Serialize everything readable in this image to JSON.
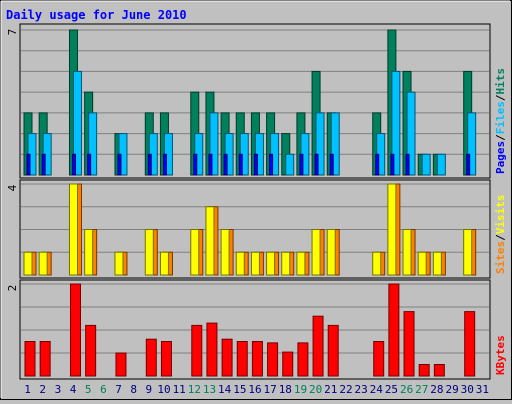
{
  "chart_data": {
    "type": "bar",
    "title": "Daily usage for June 2010",
    "categories": [
      "1",
      "2",
      "3",
      "4",
      "5",
      "6",
      "7",
      "8",
      "9",
      "10",
      "11",
      "12",
      "13",
      "14",
      "15",
      "16",
      "17",
      "18",
      "19",
      "20",
      "21",
      "22",
      "23",
      "24",
      "25",
      "26",
      "27",
      "28",
      "29",
      "30",
      "31"
    ],
    "weekend_days": [
      "5",
      "6",
      "12",
      "13",
      "19",
      "20",
      "26",
      "27"
    ],
    "panels": [
      {
        "id": "hits-files-pages",
        "ymax_label": "7",
        "ylim": [
          0,
          7
        ],
        "legend": [
          "Pages",
          "Files",
          "Hits"
        ],
        "series": [
          {
            "name": "Hits",
            "color": "#00805c",
            "values": [
              3,
              3,
              0,
              7,
              4,
              0,
              2,
              0,
              3,
              3,
              0,
              4,
              4,
              3,
              3,
              3,
              3,
              2,
              3,
              5,
              3,
              0,
              0,
              3,
              7,
              5,
              1,
              1,
              0,
              5,
              0
            ]
          },
          {
            "name": "Files",
            "color": "#00c0ff",
            "values": [
              2,
              2,
              0,
              5,
              3,
              0,
              2,
              0,
              2,
              2,
              0,
              2,
              3,
              2,
              2,
              2,
              2,
              1,
              2,
              3,
              3,
              0,
              0,
              2,
              5,
              4,
              1,
              1,
              0,
              3,
              0
            ]
          },
          {
            "name": "Pages",
            "color": "#0000ff",
            "values": [
              1,
              1,
              0,
              1,
              1,
              0,
              1,
              0,
              1,
              1,
              0,
              1,
              1,
              1,
              1,
              1,
              1,
              0,
              1,
              1,
              1,
              0,
              0,
              1,
              1,
              1,
              0,
              0,
              0,
              1,
              0
            ]
          }
        ]
      },
      {
        "id": "visits-sites",
        "ymax_label": "4",
        "ylim": [
          0,
          4
        ],
        "legend": [
          "Sites",
          "Visits"
        ],
        "series": [
          {
            "name": "Visits",
            "color": "#ffff00",
            "values": [
              1,
              1,
              0,
              4,
              2,
              0,
              1,
              0,
              2,
              1,
              0,
              2,
              3,
              2,
              1,
              1,
              1,
              1,
              1,
              2,
              2,
              0,
              0,
              1,
              4,
              2,
              1,
              1,
              0,
              2,
              0
            ]
          },
          {
            "name": "Sites",
            "color": "#ff8000",
            "values": [
              1,
              1,
              0,
              4,
              2,
              0,
              1,
              0,
              2,
              1,
              0,
              2,
              3,
              2,
              1,
              1,
              1,
              1,
              1,
              2,
              2,
              0,
              0,
              1,
              4,
              2,
              1,
              1,
              0,
              2,
              0
            ]
          }
        ]
      },
      {
        "id": "kbytes",
        "ymax_label": "2",
        "ylim": [
          0,
          2
        ],
        "legend": [
          "KBytes"
        ],
        "series": [
          {
            "name": "KBytes",
            "color": "#ff0000",
            "values": [
              0.75,
              0.75,
              0,
              2,
              1.1,
              0,
              0.5,
              0,
              0.8,
              0.75,
              0,
              1.1,
              1.15,
              0.8,
              0.75,
              0.75,
              0.72,
              0.52,
              0.72,
              1.3,
              1.1,
              0,
              0,
              0.75,
              2,
              1.4,
              0.25,
              0.25,
              0,
              1.4,
              0
            ]
          }
        ]
      }
    ],
    "colors": {
      "background": "#c0c0c0",
      "title": "#0000ff",
      "weekday_label": "#000080",
      "weekend_label": "#00805c",
      "sep": "#c0c0c0"
    }
  }
}
